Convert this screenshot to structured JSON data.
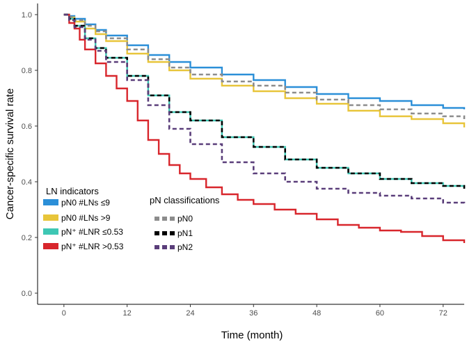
{
  "chart_data": {
    "type": "line",
    "xlabel": "Time (month)",
    "ylabel": "Cancer-specific survival rate",
    "xlim": [
      -5,
      76
    ],
    "ylim": [
      -0.04,
      1.04
    ],
    "x_ticks": [
      0,
      12,
      24,
      36,
      48,
      60,
      72
    ],
    "x_tick_labels": [
      "0",
      "12",
      "24",
      "36",
      "48",
      "60",
      "72"
    ],
    "y_ticks": [
      0.0,
      0.2,
      0.4,
      0.6,
      0.8,
      1.0
    ],
    "y_tick_labels": [
      "0.0",
      "0.2",
      "0.4",
      "0.6",
      "0.8",
      "1.0"
    ],
    "grid": false,
    "legends": [
      {
        "title": "LN indicators",
        "placement": "center-left",
        "entries": [
          {
            "label": "pN0 #LNs ≤9",
            "color": "#2b8fd8",
            "style": "solid"
          },
          {
            "label": "pN0 #LNs >9",
            "color": "#e8c53a",
            "style": "solid"
          },
          {
            "label": "pN⁺ #LNR ≤0.53",
            "color": "#3ec7b4",
            "style": "solid"
          },
          {
            "label": "pN⁺ #LNR >0.53",
            "color": "#d8262c",
            "style": "solid"
          }
        ]
      },
      {
        "title": "pN classifications",
        "placement": "center",
        "entries": [
          {
            "label": "pN0",
            "color": "#8c8c8c",
            "style": "dashed"
          },
          {
            "label": "pN1",
            "color": "#000000",
            "style": "dashed"
          },
          {
            "label": "pN2",
            "color": "#5a3e7a",
            "style": "dashed"
          }
        ]
      }
    ],
    "series": [
      {
        "name": "pN0 #LNs ≤9",
        "color": "#2b8fd8",
        "style": "solid",
        "x": [
          0,
          1,
          2,
          4,
          6,
          8,
          12,
          16,
          20,
          24,
          30,
          36,
          42,
          48,
          54,
          60,
          66,
          72,
          76
        ],
        "y": [
          1.0,
          0.995,
          0.985,
          0.965,
          0.945,
          0.925,
          0.89,
          0.855,
          0.83,
          0.81,
          0.785,
          0.765,
          0.74,
          0.715,
          0.7,
          0.69,
          0.675,
          0.665,
          0.66
        ]
      },
      {
        "name": "pN0 #LNs >9",
        "color": "#e8c53a",
        "style": "solid",
        "x": [
          0,
          1,
          2,
          4,
          6,
          8,
          12,
          16,
          20,
          24,
          30,
          36,
          42,
          48,
          54,
          60,
          66,
          72,
          76
        ],
        "y": [
          1.0,
          0.99,
          0.975,
          0.95,
          0.93,
          0.905,
          0.86,
          0.83,
          0.8,
          0.77,
          0.745,
          0.725,
          0.7,
          0.68,
          0.655,
          0.635,
          0.625,
          0.61,
          0.595
        ]
      },
      {
        "name": "pN⁺ #LNR ≤0.53",
        "color": "#3ec7b4",
        "style": "solid",
        "x": [
          0,
          1,
          2,
          4,
          6,
          8,
          12,
          16,
          20,
          24,
          30,
          36,
          42,
          48,
          54,
          60,
          66,
          72,
          76
        ],
        "y": [
          1.0,
          0.985,
          0.96,
          0.915,
          0.88,
          0.845,
          0.78,
          0.71,
          0.65,
          0.62,
          0.56,
          0.525,
          0.48,
          0.45,
          0.43,
          0.41,
          0.395,
          0.385,
          0.375
        ]
      },
      {
        "name": "pN⁺ #LNR >0.53",
        "color": "#d8262c",
        "style": "solid",
        "x": [
          0,
          1,
          2,
          3,
          4,
          6,
          8,
          10,
          12,
          14,
          16,
          18,
          20,
          22,
          24,
          27,
          30,
          33,
          36,
          40,
          44,
          48,
          52,
          56,
          60,
          64,
          68,
          72,
          76
        ],
        "y": [
          1.0,
          0.97,
          0.95,
          0.91,
          0.875,
          0.825,
          0.78,
          0.735,
          0.69,
          0.62,
          0.55,
          0.5,
          0.46,
          0.43,
          0.41,
          0.38,
          0.355,
          0.335,
          0.32,
          0.3,
          0.285,
          0.265,
          0.245,
          0.235,
          0.225,
          0.22,
          0.205,
          0.19,
          0.18
        ]
      },
      {
        "name": "pN0",
        "color": "#8c8c8c",
        "style": "dashed",
        "x": [
          0,
          1,
          2,
          4,
          6,
          8,
          12,
          16,
          20,
          24,
          30,
          36,
          42,
          48,
          54,
          60,
          66,
          72,
          76
        ],
        "y": [
          1.0,
          0.992,
          0.98,
          0.96,
          0.94,
          0.915,
          0.875,
          0.84,
          0.81,
          0.785,
          0.76,
          0.745,
          0.72,
          0.695,
          0.675,
          0.66,
          0.645,
          0.635,
          0.625
        ]
      },
      {
        "name": "pN1",
        "color": "#000000",
        "style": "dashed",
        "x": [
          0,
          1,
          2,
          4,
          6,
          8,
          12,
          16,
          20,
          24,
          30,
          36,
          42,
          48,
          54,
          60,
          66,
          72,
          76
        ],
        "y": [
          1.0,
          0.985,
          0.96,
          0.915,
          0.88,
          0.845,
          0.78,
          0.71,
          0.65,
          0.62,
          0.56,
          0.525,
          0.48,
          0.45,
          0.43,
          0.41,
          0.395,
          0.385,
          0.375
        ]
      },
      {
        "name": "pN2",
        "color": "#5a3e7a",
        "style": "dashed",
        "x": [
          0,
          1,
          2,
          4,
          6,
          8,
          12,
          16,
          20,
          24,
          30,
          36,
          42,
          48,
          54,
          60,
          66,
          72,
          76
        ],
        "y": [
          1.0,
          0.98,
          0.955,
          0.91,
          0.87,
          0.83,
          0.765,
          0.675,
          0.59,
          0.535,
          0.47,
          0.43,
          0.4,
          0.375,
          0.36,
          0.35,
          0.34,
          0.325,
          0.32
        ]
      }
    ]
  }
}
